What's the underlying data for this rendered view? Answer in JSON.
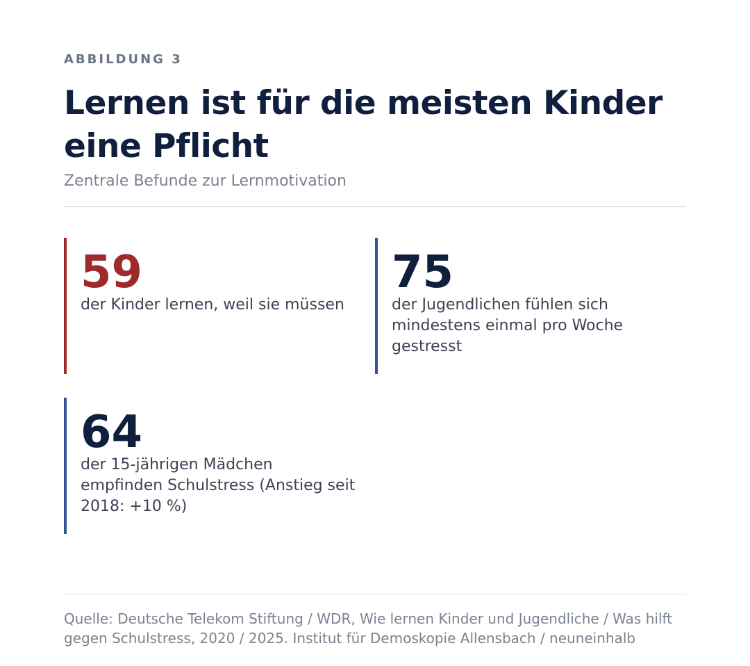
{
  "header": {
    "kicker": "ABBILDUNG 3",
    "title": "Lernen ist für die meisten Kinder eine Pflicht",
    "subtitle": "Zentrale Befunde zur Lernmotivation"
  },
  "stats": [
    {
      "number": "59",
      "text": "der Kinder lernen, weil sie müssen",
      "accent": "#9e2a2b"
    },
    {
      "number": "75",
      "text": "der Jugendlichen fühlen sich mindestens einmal pro Woche gestresst",
      "accent": "#2f5596"
    },
    {
      "number": "64",
      "text": "der 15-jährigen Mädchen empfinden Schulstress (Anstieg seit 2018: +10 %)",
      "accent": "#2f5596"
    }
  ],
  "footer": {
    "source": "Quelle: Deutsche Telekom Stiftung / WDR, Wie lernen Kinder und Jugendliche / Was hilft gegen Schulstress, 2020 / 2025. Institut für Demoskopie Allensbach / neuneinhalb"
  },
  "colors": {
    "navy": "#0f1f3d",
    "red": "#9e2a2b",
    "blue": "#2f5596",
    "muted": "#7a8291"
  }
}
